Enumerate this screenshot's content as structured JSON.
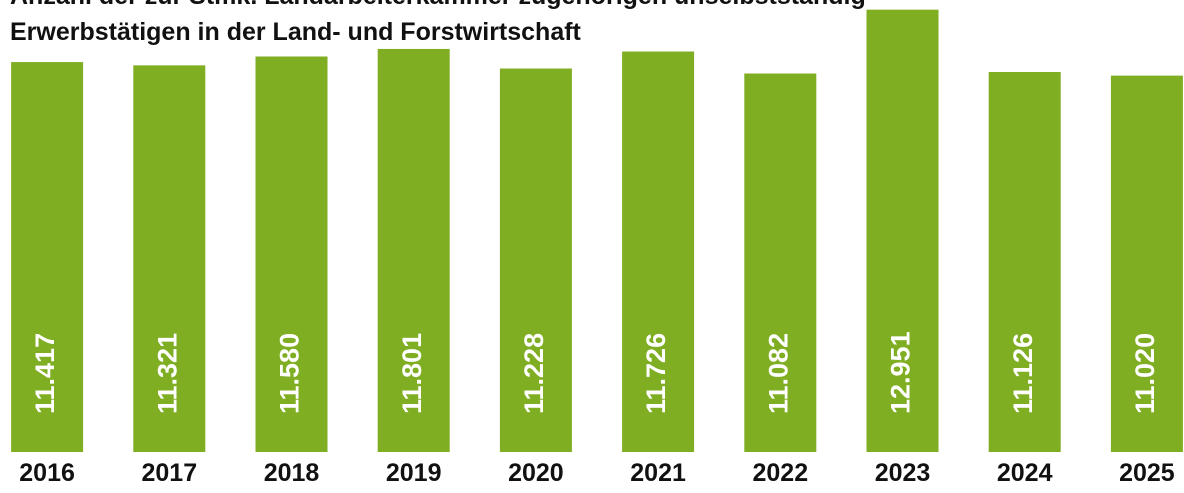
{
  "chart_data": {
    "type": "bar",
    "title_lines": [
      "Anzahl der zur Stmk. Landarbeiterkammer zugehörigen unselbstständig",
      "Erwerbstätigen in der Land- und Forstwirtschaft"
    ],
    "categories": [
      "2016",
      "2017",
      "2018",
      "2019",
      "2020",
      "2021",
      "2022",
      "2023",
      "2024",
      "2025"
    ],
    "values": [
      11417,
      11321,
      11580,
      11801,
      11228,
      11726,
      11082,
      12951,
      11126,
      11020
    ],
    "value_labels": [
      "11.417",
      "11.321",
      "11.580",
      "11.801",
      "11.228",
      "11.726",
      "11.082",
      "12.951",
      "11.126",
      "11.020"
    ],
    "color": "#7fae23",
    "ylim": [
      0,
      13000
    ]
  }
}
